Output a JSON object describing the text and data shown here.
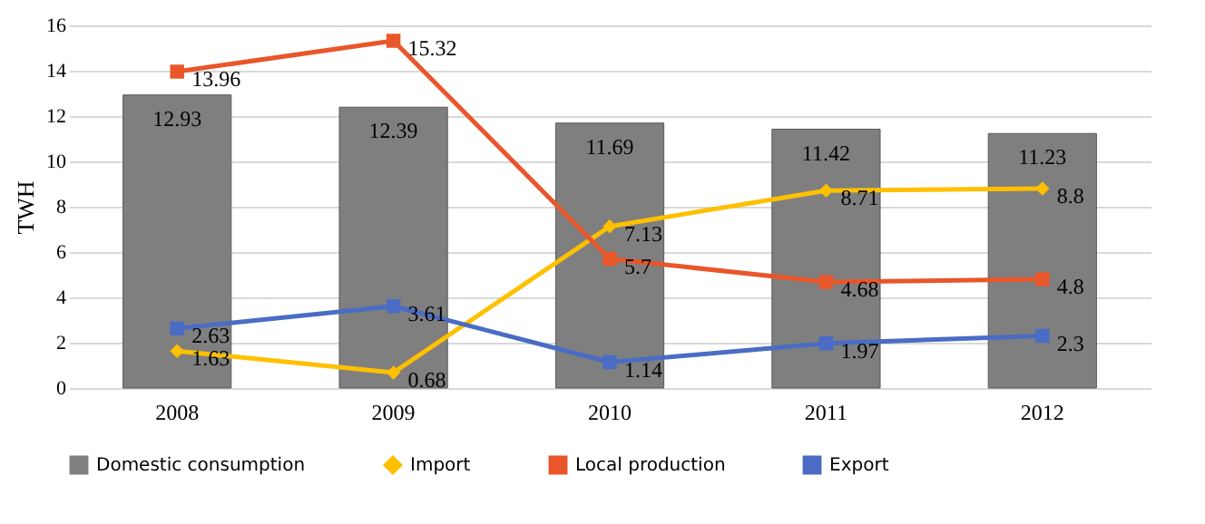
{
  "chart_data": {
    "type": "bar",
    "ylabel": "TWH",
    "categories": [
      "2008",
      "2009",
      "2010",
      "2011",
      "2012"
    ],
    "series": [
      {
        "name": "Domestic consumption",
        "color": "#7f7f7f",
        "values": [
          12.93,
          12.39,
          11.69,
          11.42,
          11.23
        ]
      },
      {
        "name": "Import",
        "type": "line",
        "color": "#ffc000",
        "marker": "diamond",
        "values": [
          1.63,
          0.68,
          7.13,
          8.71,
          8.8
        ]
      },
      {
        "name": "Local production",
        "type": "line",
        "color": "#e8562a",
        "marker": "square",
        "values": [
          13.96,
          15.32,
          5.7,
          4.68,
          4.8
        ]
      },
      {
        "name": "Export",
        "type": "line",
        "color": "#4a6cc4",
        "marker": "square",
        "values": [
          2.63,
          3.61,
          1.14,
          1.97,
          2.3
        ]
      }
    ],
    "ylim": [
      0,
      16
    ],
    "yticks": [
      0,
      2,
      4,
      6,
      8,
      10,
      12,
      14,
      16
    ],
    "grid": "y",
    "legend": "bottom",
    "data_labels": true
  }
}
